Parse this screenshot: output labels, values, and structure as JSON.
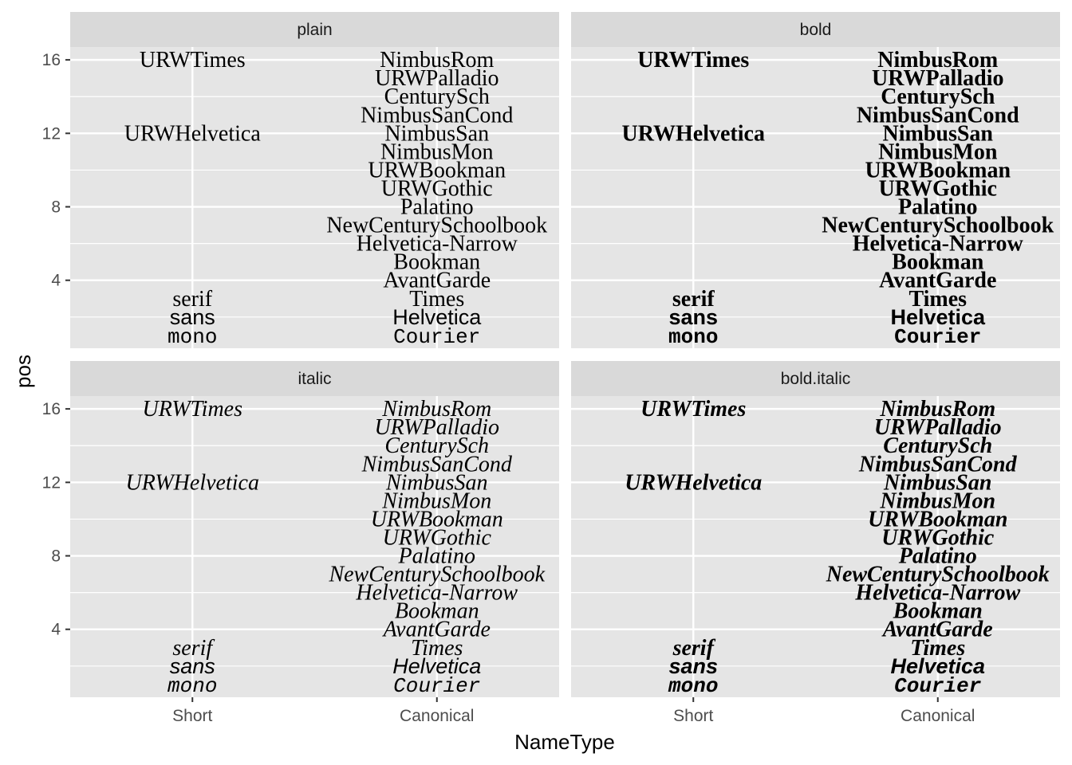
{
  "chart_data": {
    "type": "scatter",
    "geom": "text",
    "xlabel": "NameType",
    "ylabel": "pos",
    "x_categories": [
      "Short",
      "Canonical"
    ],
    "y_ticks": [
      4,
      8,
      12,
      16
    ],
    "ylim": [
      0.3,
      16.7
    ],
    "grid": true,
    "facets": [
      "plain",
      "bold",
      "italic",
      "bold.italic"
    ],
    "points": [
      {
        "x": "Short",
        "y": 16,
        "label": "URWTimes",
        "family": "serif"
      },
      {
        "x": "Short",
        "y": 12,
        "label": "URWHelvetica",
        "family": "serif"
      },
      {
        "x": "Short",
        "y": 3,
        "label": "serif",
        "family": "serif"
      },
      {
        "x": "Short",
        "y": 2,
        "label": "sans",
        "family": "sans"
      },
      {
        "x": "Short",
        "y": 1,
        "label": "mono",
        "family": "mono"
      },
      {
        "x": "Canonical",
        "y": 16,
        "label": "NimbusRom",
        "family": "serif"
      },
      {
        "x": "Canonical",
        "y": 15,
        "label": "URWPalladio",
        "family": "serif"
      },
      {
        "x": "Canonical",
        "y": 14,
        "label": "CenturySch",
        "family": "serif"
      },
      {
        "x": "Canonical",
        "y": 13,
        "label": "NimbusSanCond",
        "family": "serif"
      },
      {
        "x": "Canonical",
        "y": 12,
        "label": "NimbusSan",
        "family": "serif"
      },
      {
        "x": "Canonical",
        "y": 11,
        "label": "NimbusMon",
        "family": "serif"
      },
      {
        "x": "Canonical",
        "y": 10,
        "label": "URWBookman",
        "family": "serif"
      },
      {
        "x": "Canonical",
        "y": 9,
        "label": "URWGothic",
        "family": "serif"
      },
      {
        "x": "Canonical",
        "y": 8,
        "label": "Palatino",
        "family": "serif"
      },
      {
        "x": "Canonical",
        "y": 7,
        "label": "NewCenturySchoolbook",
        "family": "serif"
      },
      {
        "x": "Canonical",
        "y": 6,
        "label": "Helvetica-Narrow",
        "family": "serif"
      },
      {
        "x": "Canonical",
        "y": 5,
        "label": "Bookman",
        "family": "serif"
      },
      {
        "x": "Canonical",
        "y": 4,
        "label": "AvantGarde",
        "family": "serif"
      },
      {
        "x": "Canonical",
        "y": 3,
        "label": "Times",
        "family": "serif"
      },
      {
        "x": "Canonical",
        "y": 2,
        "label": "Helvetica",
        "family": "sans"
      },
      {
        "x": "Canonical",
        "y": 1,
        "label": "Courier",
        "family": "mono"
      }
    ]
  },
  "colors": {
    "panel_background": "#e5e5e5",
    "grid": "#ffffff",
    "strip_background": "#d9d9d9",
    "text": "#000000",
    "axis_text": "#4d4d4d"
  }
}
